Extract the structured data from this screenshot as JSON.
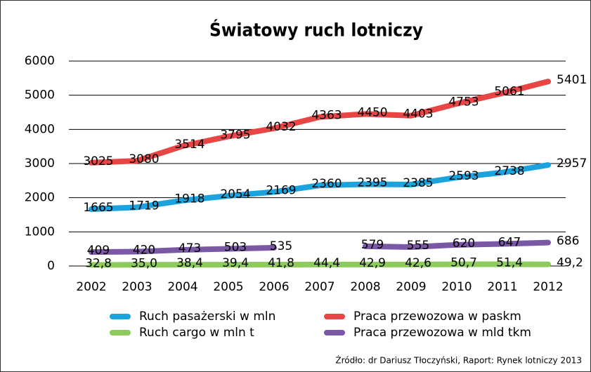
{
  "chart_data": {
    "type": "line",
    "title": "Światowy ruch lotniczy",
    "categories": [
      "2002",
      "2003",
      "2004",
      "2005",
      "2006",
      "2007",
      "2008",
      "2009",
      "2010",
      "2011",
      "2012"
    ],
    "series": [
      {
        "name": "Ruch pasażerski w mln",
        "color": "#1aa3dc",
        "values": [
          1665,
          1719,
          1918,
          2054,
          2169,
          2360,
          2395,
          2385,
          2593,
          2738,
          2957
        ]
      },
      {
        "name": "Praca przewozowa w paskm",
        "color": "#e84545",
        "values": [
          3025,
          3080,
          3514,
          3795,
          4032,
          4363,
          4450,
          4403,
          4753,
          5061,
          5401
        ]
      },
      {
        "name": "Ruch cargo w mln t",
        "color": "#8dcb5b",
        "values": [
          32.8,
          35.0,
          38.4,
          39.4,
          41.8,
          44.4,
          42.9,
          42.6,
          50.7,
          51.4,
          49.2
        ],
        "value_labels": [
          "32,8",
          "35,0",
          "38,4",
          "39,4",
          "41,8",
          "44,4",
          "42,9",
          "42,6",
          "50,7",
          "51,4",
          "49,2"
        ]
      },
      {
        "name": "Praca przewozowa w mld tkm",
        "color": "#7b58a6",
        "values": [
          409,
          420,
          473,
          503,
          535,
          null,
          579,
          555,
          620,
          647,
          686
        ]
      }
    ],
    "ylim": [
      0,
      6000
    ],
    "yticks": [
      0,
      1000,
      2000,
      3000,
      4000,
      5000,
      6000
    ],
    "grid": true,
    "source": "Źródło: dr Dariusz Tłoczyński, Raport: Rynek lotniczy 2013"
  }
}
